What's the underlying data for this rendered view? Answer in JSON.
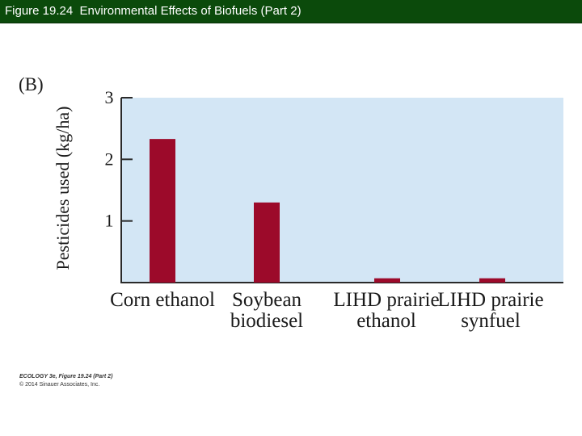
{
  "header": {
    "title": "Figure 19.24  Environmental Effects of Biofuels (Part 2)"
  },
  "panel_label": "(B)",
  "credit": {
    "line1": "ECOLOGY 3e, Figure 19.24 (Part 2)",
    "line2": "© 2014 Sinauer Associates, Inc."
  },
  "colors": {
    "bar": "#9c0a2a",
    "plot_bg": "#d3e6f5",
    "title_bar": "#0b4a0b"
  },
  "chart_data": {
    "type": "bar",
    "title": "",
    "ylabel": "Pesticides used (kg/ha)",
    "xlabel": "",
    "categories": [
      "Corn ethanol",
      "Soybean biodiesel",
      "LIHD prairie ethanol",
      "LIHD prairie synfuel"
    ],
    "values": [
      2.33,
      1.3,
      0.07,
      0.07
    ],
    "ylim": [
      0,
      3
    ],
    "yticks": [
      1,
      2,
      3
    ],
    "grid": false,
    "legend": "none"
  }
}
